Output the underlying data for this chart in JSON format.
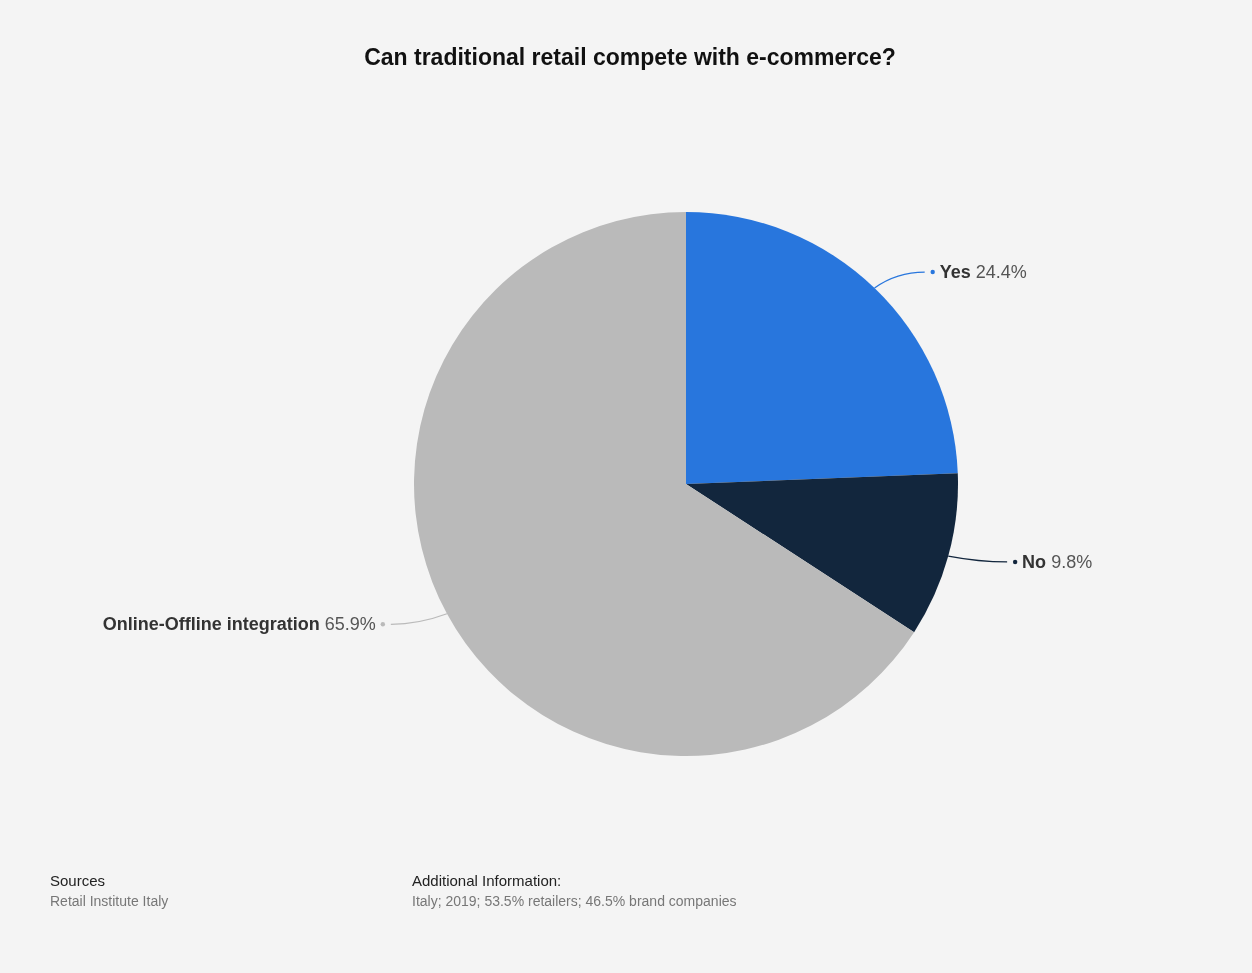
{
  "chart_data": {
    "type": "pie",
    "title": "Can traditional retail compete with e-commerce?",
    "categories": [
      "Yes",
      "No",
      "Online-Offline integration"
    ],
    "values": [
      24.4,
      9.8,
      65.9
    ],
    "value_labels": [
      "24.4%",
      "9.8%",
      "65.9%"
    ],
    "colors": [
      "#2876dd",
      "#12263d",
      "#bababa"
    ],
    "annotations": [
      "Sources",
      "Retail Institute Italy",
      "Additional Information:",
      "Italy; 2019; 53.5% retailers; 46.5% brand companies"
    ]
  }
}
